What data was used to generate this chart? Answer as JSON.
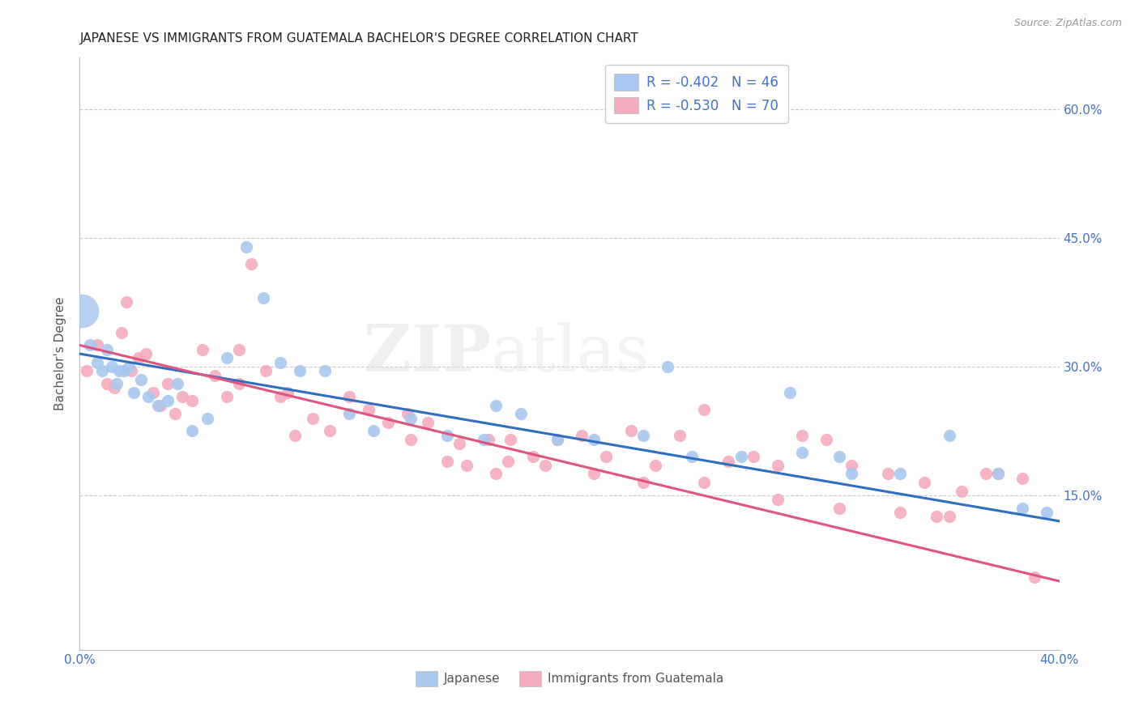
{
  "title": "JAPANESE VS IMMIGRANTS FROM GUATEMALA BACHELOR'S DEGREE CORRELATION CHART",
  "source": "Source: ZipAtlas.com",
  "ylabel": "Bachelor's Degree",
  "xmin": 0.0,
  "xmax": 0.4,
  "ymin": -0.03,
  "ymax": 0.66,
  "blue_color": "#A8C8F0",
  "pink_color": "#F4ABBE",
  "line_blue": "#2E6FBF",
  "line_pink": "#E05580",
  "tick_color": "#4472C4",
  "grid_color": "#CCCCCC",
  "bg_color": "#FFFFFF",
  "legend_r1": "R = -0.402   N = 46",
  "legend_r2": "R = -0.530   N = 70",
  "japanese_x": [
    0.001,
    0.004,
    0.007,
    0.009,
    0.011,
    0.013,
    0.015,
    0.016,
    0.018,
    0.02,
    0.022,
    0.025,
    0.028,
    0.032,
    0.036,
    0.04,
    0.046,
    0.052,
    0.06,
    0.068,
    0.075,
    0.082,
    0.09,
    0.1,
    0.11,
    0.12,
    0.135,
    0.15,
    0.165,
    0.18,
    0.195,
    0.21,
    0.23,
    0.25,
    0.27,
    0.295,
    0.315,
    0.335,
    0.355,
    0.375,
    0.385,
    0.24,
    0.17,
    0.29,
    0.31,
    0.395
  ],
  "japanese_y": [
    0.365,
    0.325,
    0.305,
    0.295,
    0.32,
    0.3,
    0.28,
    0.295,
    0.295,
    0.3,
    0.27,
    0.285,
    0.265,
    0.255,
    0.26,
    0.28,
    0.225,
    0.24,
    0.31,
    0.44,
    0.38,
    0.305,
    0.295,
    0.295,
    0.245,
    0.225,
    0.24,
    0.22,
    0.215,
    0.245,
    0.215,
    0.215,
    0.22,
    0.195,
    0.195,
    0.2,
    0.175,
    0.175,
    0.22,
    0.175,
    0.135,
    0.3,
    0.255,
    0.27,
    0.195,
    0.13
  ],
  "japanese_size": [
    900,
    80,
    80,
    80,
    80,
    80,
    80,
    80,
    80,
    80,
    80,
    80,
    80,
    80,
    80,
    80,
    80,
    80,
    80,
    80,
    80,
    80,
    80,
    80,
    80,
    80,
    80,
    80,
    80,
    80,
    80,
    80,
    80,
    80,
    80,
    80,
    80,
    80,
    80,
    80,
    80,
    80,
    80,
    80,
    80,
    80
  ],
  "guatemala_x": [
    0.003,
    0.007,
    0.011,
    0.014,
    0.017,
    0.019,
    0.021,
    0.024,
    0.027,
    0.03,
    0.033,
    0.036,
    0.039,
    0.042,
    0.046,
    0.05,
    0.055,
    0.06,
    0.065,
    0.07,
    0.076,
    0.082,
    0.088,
    0.095,
    0.102,
    0.11,
    0.118,
    0.126,
    0.134,
    0.142,
    0.15,
    0.158,
    0.167,
    0.176,
    0.185,
    0.195,
    0.205,
    0.215,
    0.225,
    0.235,
    0.245,
    0.255,
    0.265,
    0.275,
    0.285,
    0.295,
    0.305,
    0.315,
    0.33,
    0.345,
    0.36,
    0.375,
    0.255,
    0.17,
    0.19,
    0.21,
    0.23,
    0.285,
    0.31,
    0.35,
    0.065,
    0.085,
    0.135,
    0.155,
    0.175,
    0.335,
    0.355,
    0.37,
    0.39,
    0.385
  ],
  "guatemala_y": [
    0.295,
    0.325,
    0.28,
    0.275,
    0.34,
    0.375,
    0.295,
    0.31,
    0.315,
    0.27,
    0.255,
    0.28,
    0.245,
    0.265,
    0.26,
    0.32,
    0.29,
    0.265,
    0.28,
    0.42,
    0.295,
    0.265,
    0.22,
    0.24,
    0.225,
    0.265,
    0.25,
    0.235,
    0.245,
    0.235,
    0.19,
    0.185,
    0.215,
    0.215,
    0.195,
    0.215,
    0.22,
    0.195,
    0.225,
    0.185,
    0.22,
    0.25,
    0.19,
    0.195,
    0.185,
    0.22,
    0.215,
    0.185,
    0.175,
    0.165,
    0.155,
    0.175,
    0.165,
    0.175,
    0.185,
    0.175,
    0.165,
    0.145,
    0.135,
    0.125,
    0.32,
    0.27,
    0.215,
    0.21,
    0.19,
    0.13,
    0.125,
    0.175,
    0.055,
    0.17
  ]
}
